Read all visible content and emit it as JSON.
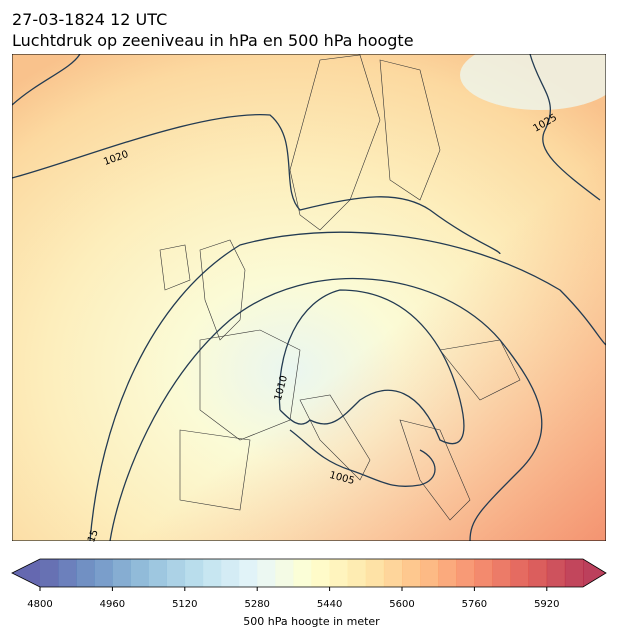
{
  "header": {
    "line1": "27-03-1824 12 UTC",
    "line2": "Luchtdruk op zeeniveau in hPa en 500 hPa hoogte"
  },
  "map": {
    "isobar_labels": [
      1020,
      1025,
      1010,
      1005,
      15
    ]
  },
  "colorbar": {
    "label": "500 hPa hoogte in meter",
    "colormap": "RdYlBu_r",
    "lim": [
      4800,
      6000
    ],
    "levels": [
      4800,
      4840,
      4880,
      4920,
      4960,
      5000,
      5040,
      5080,
      5120,
      5160,
      5200,
      5240,
      5280,
      5320,
      5360,
      5400,
      5440,
      5480,
      5520,
      5560,
      5600,
      5640,
      5680,
      5720,
      5760,
      5800,
      5840,
      5880,
      5920,
      5960,
      6000
    ],
    "ticks": [
      4800,
      4960,
      5120,
      5280,
      5440,
      5600,
      5760,
      5920
    ]
  }
}
